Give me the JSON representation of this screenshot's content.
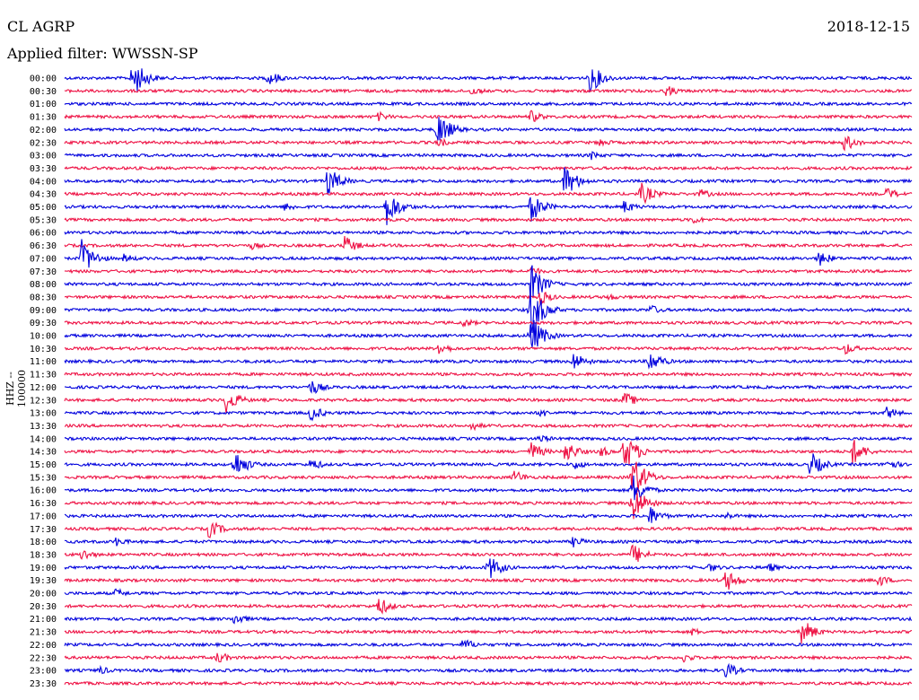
{
  "header": {
    "station": "CL AGRP",
    "date": "2018-12-15",
    "filter_label": "Applied filter: WWSSN-SP"
  },
  "chart_data": {
    "type": "line",
    "title": "CL AGRP",
    "ylabel": "HHZ -- 100000",
    "colors": [
      "#0000dd",
      "#ee1144"
    ],
    "grid": false,
    "traces": [
      {
        "label": "00:00",
        "color": "#0000dd",
        "events": [
          [
            0.08,
            24
          ],
          [
            0.24,
            10
          ],
          [
            0.62,
            18
          ]
        ]
      },
      {
        "label": "00:30",
        "color": "#ee1144",
        "events": [
          [
            0.71,
            7
          ],
          [
            0.48,
            6
          ]
        ]
      },
      {
        "label": "01:00",
        "color": "#0000dd",
        "events": []
      },
      {
        "label": "01:30",
        "color": "#ee1144",
        "events": [
          [
            0.55,
            8
          ],
          [
            0.37,
            6
          ]
        ]
      },
      {
        "label": "02:00",
        "color": "#0000dd",
        "events": [
          [
            0.44,
            22
          ]
        ]
      },
      {
        "label": "02:30",
        "color": "#ee1144",
        "events": [
          [
            0.92,
            11
          ],
          [
            0.44,
            6
          ],
          [
            0.63,
            6
          ]
        ]
      },
      {
        "label": "03:00",
        "color": "#0000dd",
        "events": [
          [
            0.62,
            6
          ]
        ]
      },
      {
        "label": "03:30",
        "color": "#ee1144",
        "events": []
      },
      {
        "label": "04:00",
        "color": "#0000dd",
        "events": [
          [
            0.31,
            18
          ],
          [
            0.59,
            20
          ]
        ]
      },
      {
        "label": "04:30",
        "color": "#ee1144",
        "events": [
          [
            0.68,
            14
          ],
          [
            0.75,
            6
          ],
          [
            0.97,
            8
          ]
        ]
      },
      {
        "label": "05:00",
        "color": "#0000dd",
        "events": [
          [
            0.38,
            22
          ],
          [
            0.55,
            18
          ],
          [
            0.26,
            6
          ],
          [
            0.66,
            8
          ]
        ]
      },
      {
        "label": "05:30",
        "color": "#ee1144",
        "events": [
          [
            0.74,
            6
          ]
        ]
      },
      {
        "label": "06:00",
        "color": "#0000dd",
        "events": []
      },
      {
        "label": "06:30",
        "color": "#ee1144",
        "events": [
          [
            0.33,
            12
          ],
          [
            0.22,
            5
          ]
        ]
      },
      {
        "label": "07:00",
        "color": "#0000dd",
        "events": [
          [
            0.02,
            22
          ],
          [
            0.07,
            6
          ],
          [
            0.89,
            10
          ]
        ]
      },
      {
        "label": "07:30",
        "color": "#ee1144",
        "events": [
          [
            0.55,
            6
          ]
        ]
      },
      {
        "label": "08:00",
        "color": "#0000dd",
        "events": [
          [
            0.55,
            24
          ]
        ]
      },
      {
        "label": "08:30",
        "color": "#ee1144",
        "events": [
          [
            0.64,
            5
          ],
          [
            0.56,
            10
          ]
        ]
      },
      {
        "label": "09:00",
        "color": "#0000dd",
        "events": [
          [
            0.55,
            30
          ],
          [
            0.69,
            7
          ]
        ]
      },
      {
        "label": "09:30",
        "color": "#ee1144",
        "events": [
          [
            0.47,
            6
          ]
        ]
      },
      {
        "label": "10:00",
        "color": "#0000dd",
        "events": [
          [
            0.55,
            24
          ]
        ]
      },
      {
        "label": "10:30",
        "color": "#ee1144",
        "events": [
          [
            0.44,
            9
          ],
          [
            0.92,
            8
          ]
        ]
      },
      {
        "label": "11:00",
        "color": "#0000dd",
        "events": [
          [
            0.6,
            12
          ],
          [
            0.69,
            14
          ]
        ]
      },
      {
        "label": "11:30",
        "color": "#ee1144",
        "events": []
      },
      {
        "label": "12:00",
        "color": "#0000dd",
        "events": [
          [
            0.29,
            10
          ]
        ]
      },
      {
        "label": "12:30",
        "color": "#ee1144",
        "events": [
          [
            0.19,
            16
          ],
          [
            0.66,
            10
          ]
        ]
      },
      {
        "label": "13:00",
        "color": "#0000dd",
        "events": [
          [
            0.29,
            10
          ],
          [
            0.56,
            6
          ],
          [
            0.97,
            8
          ]
        ]
      },
      {
        "label": "13:30",
        "color": "#ee1144",
        "events": [
          [
            0.48,
            6
          ]
        ]
      },
      {
        "label": "14:00",
        "color": "#0000dd",
        "events": [
          [
            0.56,
            6
          ]
        ]
      },
      {
        "label": "14:30",
        "color": "#ee1144",
        "events": [
          [
            0.55,
            12
          ],
          [
            0.59,
            14
          ],
          [
            0.66,
            24
          ],
          [
            0.93,
            16
          ],
          [
            0.63,
            8
          ]
        ]
      },
      {
        "label": "15:00",
        "color": "#0000dd",
        "events": [
          [
            0.2,
            18
          ],
          [
            0.29,
            8
          ],
          [
            0.6,
            7
          ],
          [
            0.88,
            16
          ],
          [
            0.97,
            8
          ]
        ]
      },
      {
        "label": "15:30",
        "color": "#ee1144",
        "events": [
          [
            0.67,
            28
          ],
          [
            0.53,
            9
          ]
        ]
      },
      {
        "label": "16:00",
        "color": "#0000dd",
        "events": [
          [
            0.67,
            20
          ]
        ]
      },
      {
        "label": "16:30",
        "color": "#ee1144",
        "events": [
          [
            0.67,
            24
          ]
        ]
      },
      {
        "label": "17:00",
        "color": "#0000dd",
        "events": [
          [
            0.69,
            12
          ],
          [
            0.78,
            5
          ]
        ]
      },
      {
        "label": "17:30",
        "color": "#ee1144",
        "events": [
          [
            0.17,
            12
          ]
        ]
      },
      {
        "label": "18:00",
        "color": "#0000dd",
        "events": [
          [
            0.06,
            6
          ],
          [
            0.6,
            7
          ]
        ]
      },
      {
        "label": "18:30",
        "color": "#ee1144",
        "events": [
          [
            0.02,
            8
          ],
          [
            0.67,
            14
          ]
        ]
      },
      {
        "label": "19:00",
        "color": "#0000dd",
        "events": [
          [
            0.5,
            16
          ],
          [
            0.76,
            6
          ],
          [
            0.83,
            6
          ]
        ]
      },
      {
        "label": "19:30",
        "color": "#ee1144",
        "events": [
          [
            0.78,
            14
          ],
          [
            0.96,
            8
          ]
        ]
      },
      {
        "label": "20:00",
        "color": "#0000dd",
        "events": [
          [
            0.06,
            6
          ]
        ]
      },
      {
        "label": "20:30",
        "color": "#ee1144",
        "events": [
          [
            0.37,
            12
          ]
        ]
      },
      {
        "label": "21:00",
        "color": "#0000dd",
        "events": [
          [
            0.2,
            8
          ]
        ]
      },
      {
        "label": "21:30",
        "color": "#ee1144",
        "events": [
          [
            0.87,
            16
          ],
          [
            0.74,
            5
          ]
        ]
      },
      {
        "label": "22:00",
        "color": "#0000dd",
        "events": [
          [
            0.47,
            8
          ]
        ]
      },
      {
        "label": "22:30",
        "color": "#ee1144",
        "events": [
          [
            0.18,
            8
          ],
          [
            0.73,
            6
          ]
        ]
      },
      {
        "label": "23:00",
        "color": "#0000dd",
        "events": [
          [
            0.04,
            6
          ],
          [
            0.78,
            10
          ]
        ]
      },
      {
        "label": "23:30",
        "color": "#ee1144",
        "events": []
      }
    ]
  }
}
